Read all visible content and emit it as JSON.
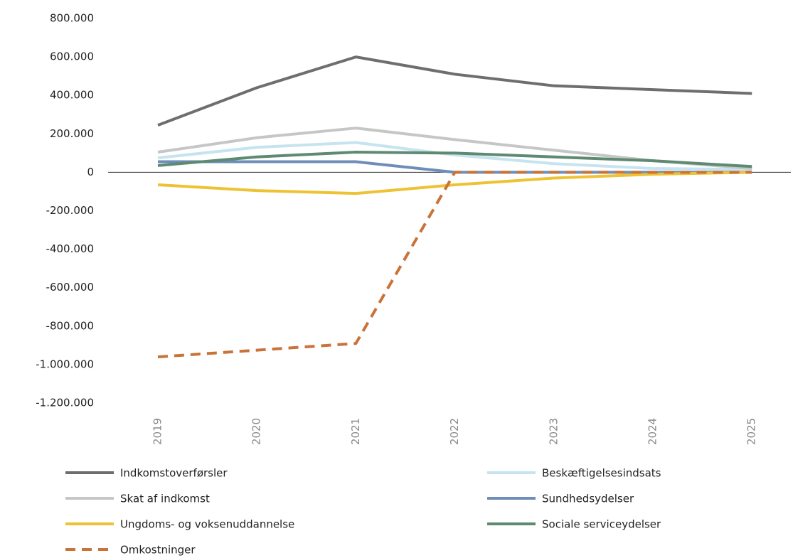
{
  "chart_data": {
    "type": "line",
    "categories": [
      "2019",
      "2020",
      "2021",
      "2022",
      "2023",
      "2024",
      "2025"
    ],
    "ylim": [
      -1200000,
      800000
    ],
    "yticks": [
      {
        "value": -1200000,
        "label": "-1.200.000"
      },
      {
        "value": -1000000,
        "label": "-1.000.000"
      },
      {
        "value": -800000,
        "label": "-800.000"
      },
      {
        "value": -600000,
        "label": "-600.000"
      },
      {
        "value": -400000,
        "label": "-400.000"
      },
      {
        "value": -200000,
        "label": "-200.000"
      },
      0,
      {
        "value": 200000,
        "label": "200.000"
      },
      {
        "value": 400000,
        "label": "400.000"
      },
      {
        "value": 600000,
        "label": "600.000"
      },
      {
        "value": 800000,
        "label": "800.000"
      }
    ],
    "series": [
      {
        "name": "Indkomstoverførsler",
        "color": "#6e6e6e",
        "values": [
          245000,
          440000,
          600000,
          510000,
          450000,
          430000,
          410000
        ]
      },
      {
        "name": "Beskæftigelsesindsats",
        "color": "#c6e4ef",
        "values": [
          75000,
          130000,
          155000,
          90000,
          45000,
          20000,
          15000
        ]
      },
      {
        "name": "Skat af indkomst",
        "color": "#c6c6c6",
        "values": [
          105000,
          180000,
          230000,
          170000,
          115000,
          60000,
          20000
        ]
      },
      {
        "name": "Sundhedsydelser",
        "color": "#6e8db8",
        "values": [
          55000,
          55000,
          55000,
          0,
          0,
          0,
          0
        ]
      },
      {
        "name": "Ungdoms- og voksenuddannelse",
        "color": "#eec232",
        "values": [
          -65000,
          -95000,
          -110000,
          -65000,
          -30000,
          -10000,
          0
        ]
      },
      {
        "name": "Sociale serviceydelser",
        "color": "#5e8a72",
        "values": [
          35000,
          80000,
          105000,
          100000,
          80000,
          60000,
          30000
        ]
      },
      {
        "name": "Omkostninger",
        "color": "#c9733a",
        "dashed": true,
        "values": [
          -960000,
          -925000,
          -890000,
          0,
          0,
          0,
          0
        ]
      }
    ]
  }
}
